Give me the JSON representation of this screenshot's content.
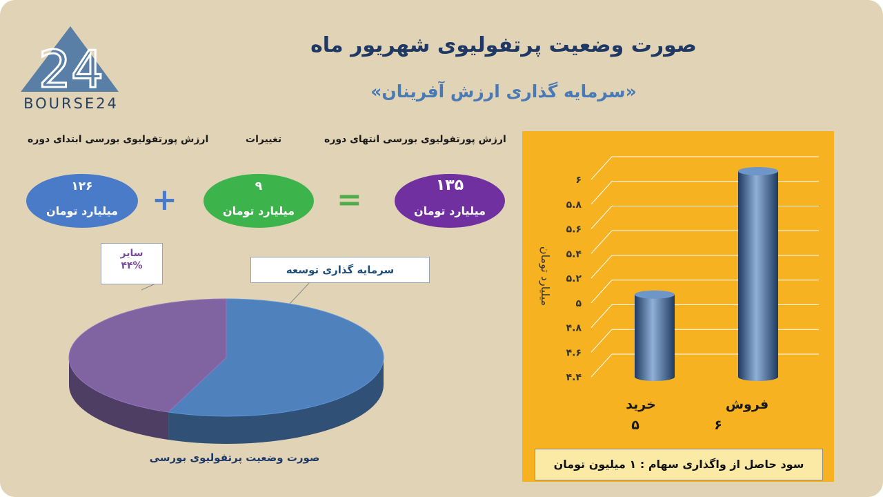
{
  "header": {
    "title": "صورت وضعیت پرتفولیوی شهریور ماه",
    "subtitle": "«سرمایه گذاری ارزش آفرینان»"
  },
  "logo": {
    "text": "BOURSE24",
    "numeral": "24",
    "color": "#5a7fa7"
  },
  "summary": {
    "end_label": "ارزش پورتفولیوی بورسی انتهای دوره",
    "change_label": "تغییرات",
    "start_label": "ارزش پورتفولیوی بورسی ابتدای دوره",
    "end_value": "۱۳۵",
    "change_value": "۹",
    "start_value": "۱۲۶",
    "unit": "میلیارد تومان",
    "plus": "+",
    "equals": "=",
    "colors": {
      "end": "#7030a0",
      "change": "#3cb44b",
      "start": "#4a7bc8"
    }
  },
  "chart_data": [
    {
      "type": "pie",
      "title": "صورت وضعیت پرتفولیوی بورسی",
      "slices": [
        {
          "name": "سرمایه گذاری توسعه",
          "value": 56,
          "color": "#4f81bd"
        },
        {
          "name": "سایر",
          "value": 44,
          "label": "۴۴%",
          "color": "#8064a2"
        }
      ]
    },
    {
      "type": "bar",
      "categories": [
        "خرید",
        "فروش"
      ],
      "values": [
        5,
        6
      ],
      "value_labels": [
        "۵",
        "۶"
      ],
      "ylabel": "میلیارد تومان",
      "ylim": [
        4.4,
        6
      ],
      "yticks": [
        4.4,
        4.6,
        4.8,
        5,
        5.2,
        5.4,
        5.6,
        5.8,
        6
      ],
      "ytick_labels": [
        "۴.۴",
        "۴.۶",
        "۴.۸",
        "۵",
        "۵.۲",
        "۵.۴",
        "۵.۶",
        "۵.۸",
        "۶"
      ],
      "grid": true,
      "bar_color": "#4f81bd",
      "background": "#f7b221"
    }
  ],
  "footer": {
    "profit_text": "سود حاصل از واگذاری سهام :  ۱ میلیون تومان"
  }
}
